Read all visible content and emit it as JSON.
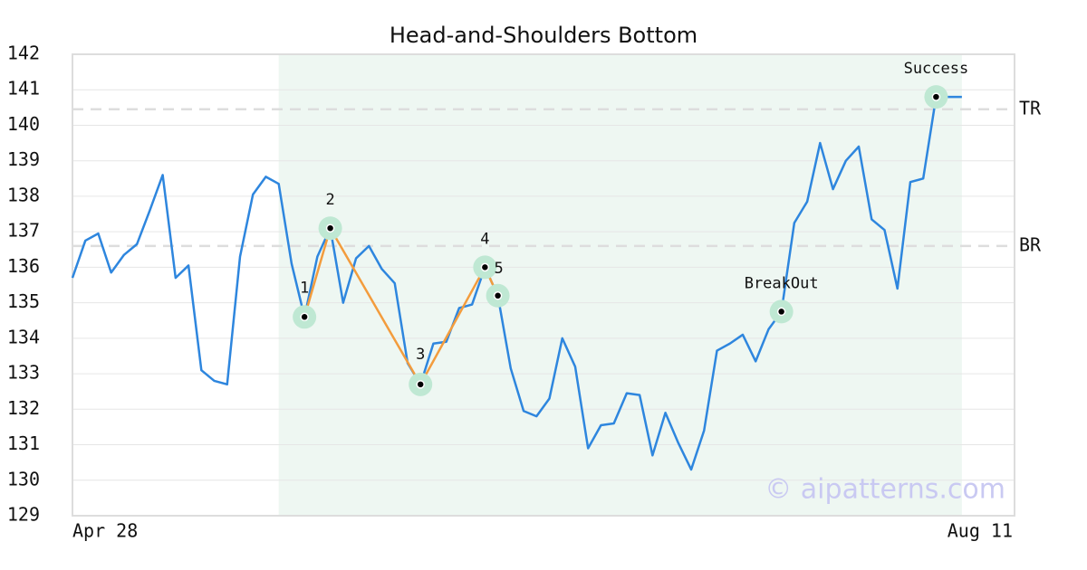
{
  "chart_data": {
    "type": "line",
    "title": "Head-and-Shoulders Bottom",
    "categories": [
      "Apr 28",
      null,
      null,
      null,
      null,
      null,
      null,
      null,
      null,
      null,
      null,
      null,
      null,
      null,
      null,
      null,
      null,
      null,
      null,
      null,
      null,
      null,
      null,
      null,
      null,
      null,
      null,
      null,
      null,
      null,
      null,
      null,
      null,
      null,
      null,
      null,
      null,
      null,
      null,
      null,
      null,
      null,
      null,
      null,
      null,
      null,
      null,
      null,
      null,
      null,
      null,
      null,
      null,
      null,
      null,
      null,
      null,
      null,
      null,
      null,
      null,
      null,
      null,
      null,
      null,
      null,
      null,
      null,
      null,
      "Aug 11"
    ],
    "values": [
      135.7,
      136.75,
      136.95,
      135.85,
      136.35,
      136.65,
      137.6,
      138.6,
      135.7,
      136.05,
      133.1,
      132.8,
      132.7,
      136.3,
      138.05,
      138.55,
      138.35,
      136.1,
      134.6,
      136.3,
      137.1,
      135.0,
      136.25,
      136.6,
      135.95,
      135.55,
      133.3,
      132.7,
      133.85,
      133.9,
      134.85,
      134.95,
      136.0,
      135.2,
      133.15,
      131.95,
      131.8,
      132.3,
      134.0,
      133.2,
      130.9,
      131.55,
      131.6,
      132.45,
      132.4,
      130.7,
      131.9,
      131.05,
      130.3,
      131.4,
      133.65,
      133.85,
      134.1,
      133.35,
      134.25,
      134.75,
      137.25,
      137.85,
      139.5,
      138.2,
      139.0,
      139.4,
      137.35,
      137.05,
      135.4,
      138.4,
      138.5,
      140.8,
      140.8,
      140.8
    ],
    "color": "#2e86de",
    "ylim": [
      129,
      142
    ],
    "yticks": [
      129,
      130,
      131,
      132,
      133,
      134,
      135,
      136,
      137,
      138,
      139,
      140,
      141,
      142
    ],
    "grid": true,
    "shaded_range": [
      16,
      69
    ],
    "levels": [
      {
        "label": "TR",
        "value": 140.45
      },
      {
        "label": "BR",
        "value": 136.6
      }
    ],
    "pattern_color": "#f39c3d",
    "points": [
      {
        "label": "1",
        "index": 18,
        "value": 134.6
      },
      {
        "label": "2",
        "index": 20,
        "value": 137.1
      },
      {
        "label": "3",
        "index": 27,
        "value": 132.7
      },
      {
        "label": "4",
        "index": 32,
        "value": 136.0
      },
      {
        "label": "5",
        "index": 33,
        "value": 135.2
      },
      {
        "label": "BreakOut",
        "index": 55,
        "value": 134.75
      },
      {
        "label": "Success",
        "index": 67,
        "value": 140.8
      }
    ],
    "watermark": "© aipatterns.com"
  }
}
